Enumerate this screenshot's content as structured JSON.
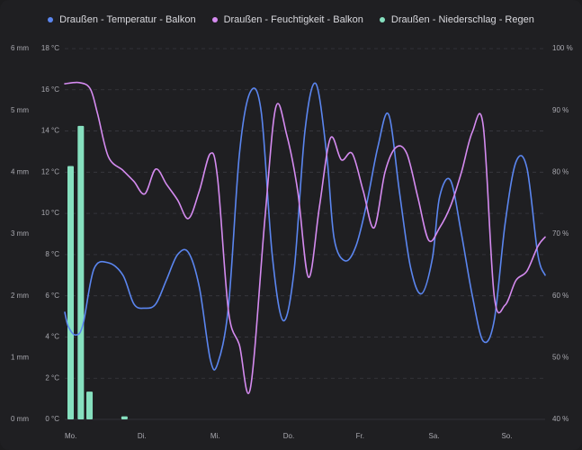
{
  "colors": {
    "background": "#1f1f22",
    "grid": "#3a3a40",
    "temperature": "#5b86f0",
    "humidity": "#d58bf0",
    "rain": "#86e0bf"
  },
  "chart_data": {
    "type": "line",
    "x_labels": [
      "Mo.",
      "Di.",
      "Mi.",
      "Do.",
      "Fr.",
      "Sa.",
      "So."
    ],
    "legend": {
      "position": "top",
      "items": [
        {
          "label": "Draußen - Temperatur - Balkon",
          "color": "#5b86f0"
        },
        {
          "label": "Draußen - Feuchtigkeit - Balkon",
          "color": "#d58bf0"
        },
        {
          "label": "Draußen - Niederschlag - Regen",
          "color": "#86e0bf"
        }
      ]
    },
    "axes": {
      "rain": {
        "side": "left-outer",
        "min": 0,
        "max": 6,
        "ticks": [
          "0 mm",
          "1 mm",
          "2 mm",
          "3 mm",
          "4 mm",
          "5 mm",
          "6 mm"
        ]
      },
      "temperature": {
        "side": "left-inner",
        "min": 0,
        "max": 18,
        "ticks": [
          "0 °C",
          "2 °C",
          "4 °C",
          "6 °C",
          "8 °C",
          "10 °C",
          "12 °C",
          "14 °C",
          "16 °C",
          "18 °C"
        ]
      },
      "humidity": {
        "side": "right",
        "min": 40,
        "max": 100,
        "ticks": [
          "40 %",
          "50 %",
          "60 %",
          "70 %",
          "80 %",
          "90 %",
          "100 %"
        ]
      }
    },
    "grid": true,
    "series": [
      {
        "name": "Draußen - Temperatur - Balkon",
        "axis": "temperature",
        "color": "#5b86f0",
        "x": [
          0,
          0.05,
          0.15,
          0.25,
          0.4,
          0.6,
          0.8,
          0.95,
          1.1,
          1.25,
          1.4,
          1.55,
          1.7,
          1.85,
          2.0,
          2.1,
          2.25,
          2.4,
          2.55,
          2.7,
          2.85,
          3.0,
          3.15,
          3.3,
          3.45,
          3.6,
          3.7,
          3.85,
          4.0,
          4.15,
          4.3,
          4.45,
          4.6,
          4.75,
          4.9,
          5.05,
          5.15,
          5.3,
          5.45,
          5.6,
          5.75,
          5.9,
          6.05,
          6.2,
          6.35,
          6.5,
          6.6
        ],
        "y": [
          5.2,
          4.5,
          4.1,
          4.6,
          7.3,
          7.6,
          7.0,
          5.6,
          5.4,
          5.6,
          6.8,
          8.0,
          8.1,
          6.4,
          2.9,
          2.7,
          5.5,
          12.9,
          15.9,
          14.9,
          8.0,
          4.8,
          7.2,
          14.0,
          16.3,
          12.8,
          8.8,
          7.7,
          8.4,
          10.5,
          13.2,
          14.8,
          11.0,
          7.4,
          6.1,
          7.8,
          10.8,
          11.6,
          9.0,
          6.0,
          3.8,
          4.8,
          9.5,
          12.5,
          12.2,
          8.0,
          7.0
        ]
      },
      {
        "name": "Draußen - Feuchtigkeit - Balkon",
        "axis": "humidity",
        "color": "#d58bf0",
        "x": [
          0,
          0.2,
          0.35,
          0.45,
          0.6,
          0.8,
          0.95,
          1.1,
          1.25,
          1.4,
          1.55,
          1.7,
          1.85,
          2.0,
          2.1,
          2.25,
          2.4,
          2.55,
          2.75,
          2.9,
          3.05,
          3.2,
          3.35,
          3.5,
          3.65,
          3.8,
          3.95,
          4.1,
          4.25,
          4.4,
          4.55,
          4.7,
          4.85,
          5.0,
          5.15,
          5.3,
          5.45,
          5.6,
          5.75,
          5.9,
          6.05,
          6.2,
          6.35,
          6.5,
          6.6
        ],
        "y": [
          94.3,
          94.5,
          93.5,
          89.5,
          82.5,
          80.3,
          78.5,
          76.5,
          80.5,
          78.0,
          75.5,
          72.5,
          77.0,
          83.0,
          79.0,
          57.5,
          52.0,
          45.0,
          72.5,
          90.5,
          86.0,
          77.0,
          63.0,
          74.5,
          85.5,
          82.0,
          83.0,
          77.0,
          71.0,
          80.0,
          84.0,
          83.0,
          76.0,
          69.0,
          71.0,
          74.5,
          80.0,
          86.5,
          87.5,
          60.0,
          58.5,
          62.5,
          64.0,
          68.0,
          69.5
        ]
      },
      {
        "name": "Draußen - Niederschlag - Regen",
        "axis": "rain",
        "type": "bar",
        "color": "#86e0bf",
        "x": [
          0.0,
          0.14,
          0.26,
          0.74
        ],
        "values": [
          4.1,
          4.75,
          0.45,
          0.05
        ]
      }
    ]
  }
}
